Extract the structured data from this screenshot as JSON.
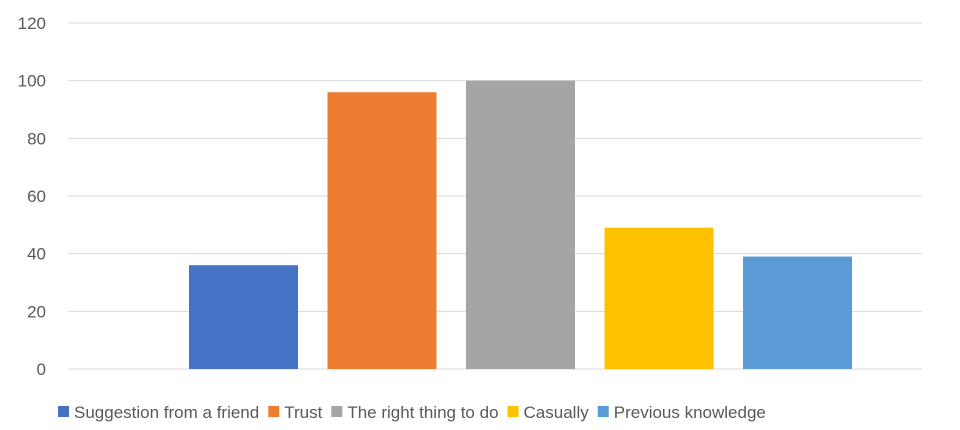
{
  "chart_data": {
    "type": "bar",
    "categories": [
      "Suggestion from a friend",
      "Trust",
      "The right thing to do",
      "Casually",
      "Previous knowledge"
    ],
    "values": [
      36,
      96,
      100,
      49,
      39
    ],
    "colors": [
      "#4472C4",
      "#ED7D31",
      "#A5A5A5",
      "#FFC000",
      "#5B9BD5"
    ],
    "ylim": [
      0,
      120
    ],
    "yticks": [
      0,
      20,
      40,
      60,
      80,
      100,
      120
    ],
    "grid": true,
    "legend_position": "bottom",
    "title": "",
    "xlabel": "",
    "ylabel": ""
  }
}
